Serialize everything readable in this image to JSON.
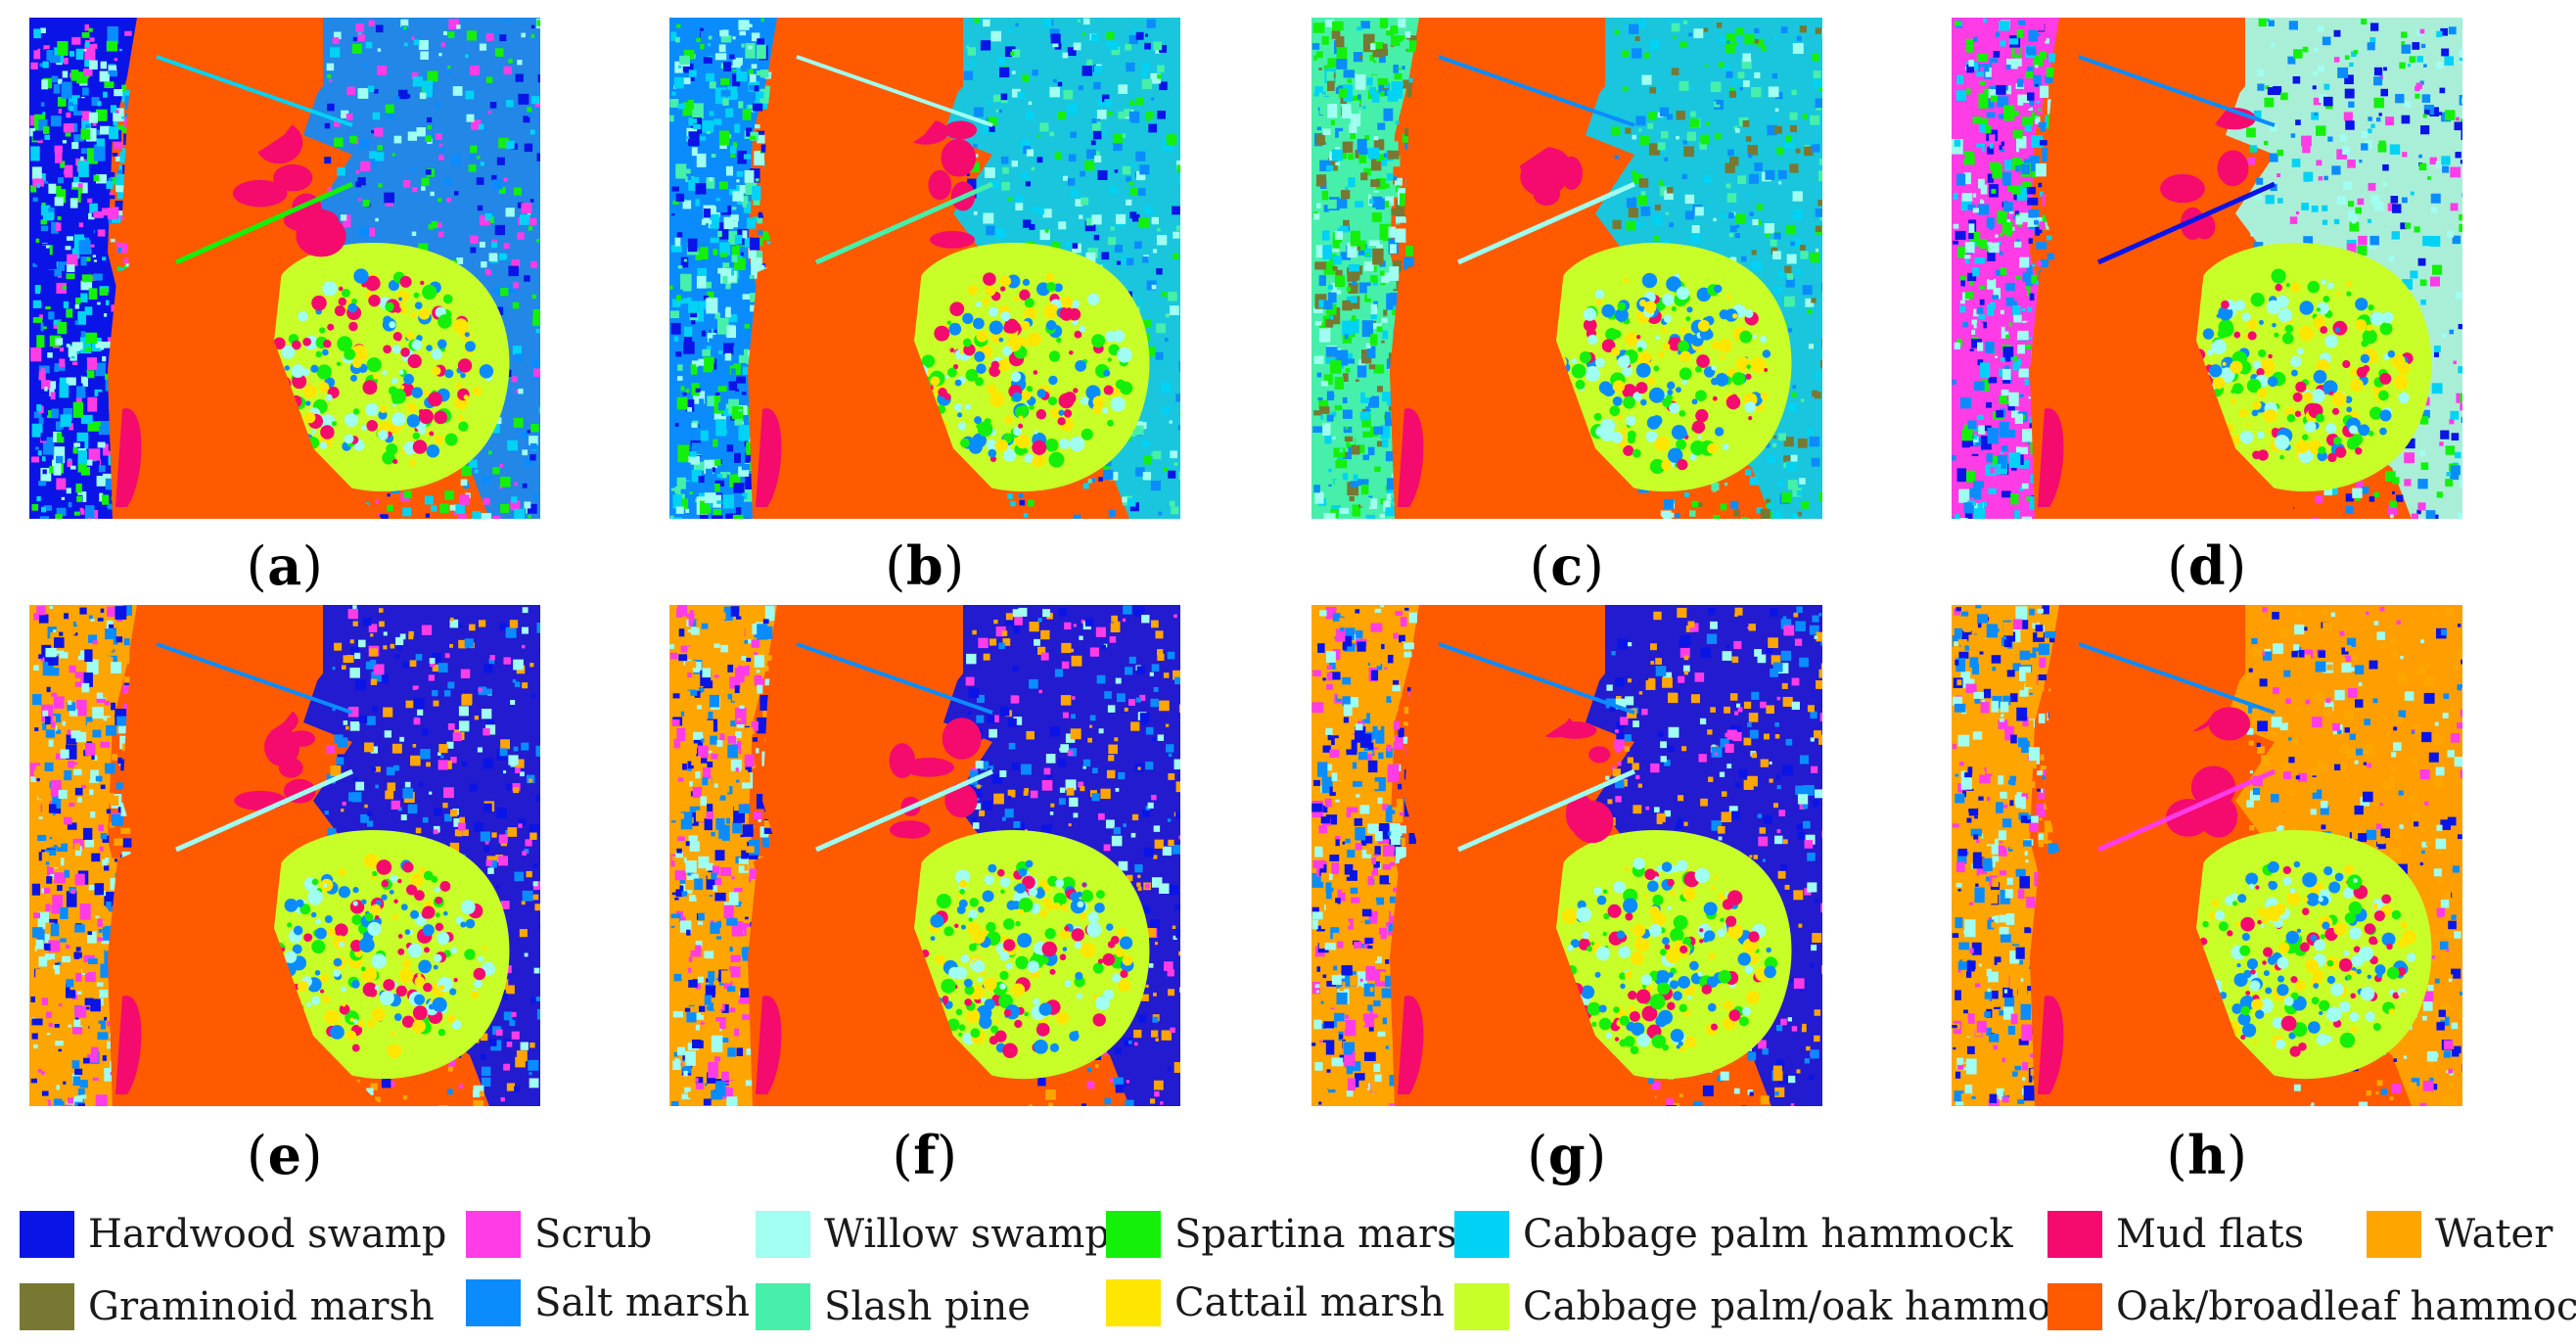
{
  "panels": [
    {
      "label": "a",
      "theme": "blue"
    },
    {
      "label": "b",
      "theme": "bluegreen"
    },
    {
      "label": "c",
      "theme": "teal"
    },
    {
      "label": "d",
      "theme": "pink"
    },
    {
      "label": "e",
      "theme": "orange"
    },
    {
      "label": "f",
      "theme": "orange"
    },
    {
      "label": "g",
      "theme": "orange"
    },
    {
      "label": "h",
      "theme": "orangeblue"
    }
  ],
  "legend": [
    {
      "label": "Hardwood swamp",
      "color": "#0a14e6"
    },
    {
      "label": "Scrub",
      "color": "#ff3ce6"
    },
    {
      "label": "Willow swamp",
      "color": "#a0fff0"
    },
    {
      "label": "Spartina marsh",
      "color": "#14f00a"
    },
    {
      "label": "Cabbage palm hammock",
      "color": "#00d2f5"
    },
    {
      "label": "Mud flats",
      "color": "#f50a6e"
    },
    {
      "label": "Water",
      "color": "#ffa500"
    },
    {
      "label": "Graminoid marsh",
      "color": "#787832"
    },
    {
      "label": "Salt marsh",
      "color": "#0a8cff"
    },
    {
      "label": "Slash pine",
      "color": "#46f0aa"
    },
    {
      "label": "Cattail marsh",
      "color": "#ffe600"
    },
    {
      "label": "Cabbage palm/oak hammock",
      "color": "#c8ff28"
    },
    {
      "label": "Oak/broadleaf hammock",
      "color": "#ff5a00"
    }
  ]
}
